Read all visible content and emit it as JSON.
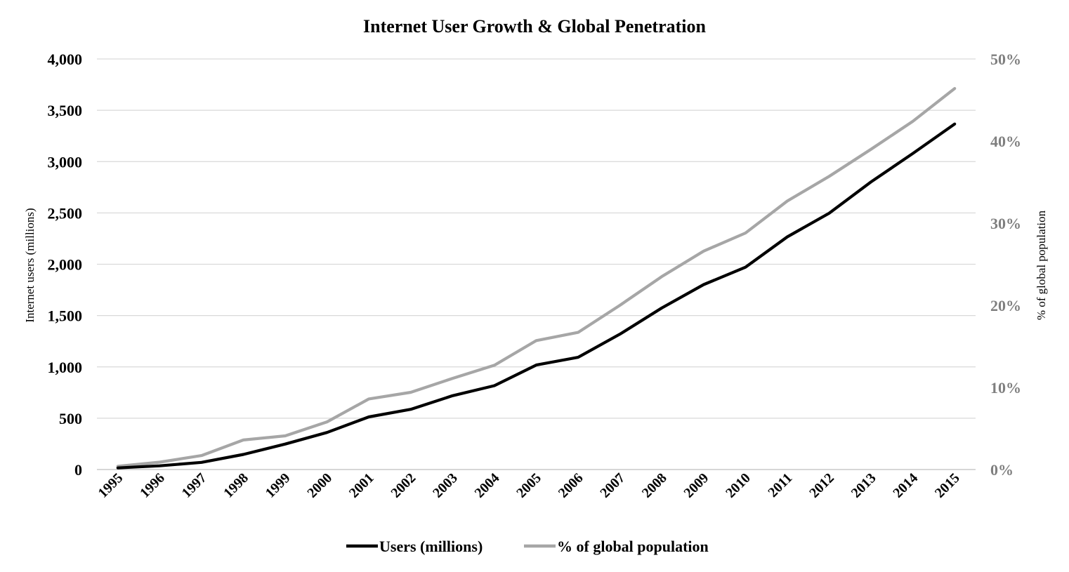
{
  "chart_data": {
    "type": "line",
    "title": "Internet User Growth & Global Penetration",
    "categories": [
      "1995",
      "1996",
      "1997",
      "1998",
      "1999",
      "2000",
      "2001",
      "2002",
      "2003",
      "2004",
      "2005",
      "2006",
      "2007",
      "2008",
      "2009",
      "2010",
      "2011",
      "2012",
      "2013",
      "2014",
      "2015"
    ],
    "left_axis": {
      "label": "Internet users (millions)",
      "ylim": [
        0,
        4000
      ],
      "ticks": [
        0,
        500,
        1000,
        1500,
        2000,
        2500,
        3000,
        3500,
        4000
      ],
      "tick_labels": [
        "0",
        "500",
        "1,000",
        "1,500",
        "2,000",
        "2,500",
        "3,000",
        "3,500",
        "4,000"
      ]
    },
    "right_axis": {
      "label": "% of global population",
      "ylim": [
        0,
        50
      ],
      "ticks": [
        0,
        10,
        20,
        30,
        40,
        50
      ],
      "tick_labels": [
        "0%",
        "10%",
        "20%",
        "30%",
        "40%",
        "50%"
      ]
    },
    "series": [
      {
        "name": "Users (millions)",
        "axis": "left",
        "color": "#000000",
        "values": [
          16,
          36,
          70,
          147,
          248,
          361,
          513,
          587,
          719,
          817,
          1018,
          1093,
          1319,
          1574,
          1802,
          1971,
          2267,
          2497,
          2802,
          3079,
          3366
        ]
      },
      {
        "name": "% of global population",
        "axis": "right",
        "color": "#a6a6a6",
        "values": [
          0.4,
          0.9,
          1.7,
          3.6,
          4.1,
          5.8,
          8.6,
          9.4,
          11.1,
          12.7,
          15.7,
          16.7,
          20.0,
          23.5,
          26.6,
          28.8,
          32.7,
          35.7,
          39.0,
          42.4,
          46.4
        ]
      }
    ],
    "grid": true,
    "legend_position": "bottom"
  }
}
